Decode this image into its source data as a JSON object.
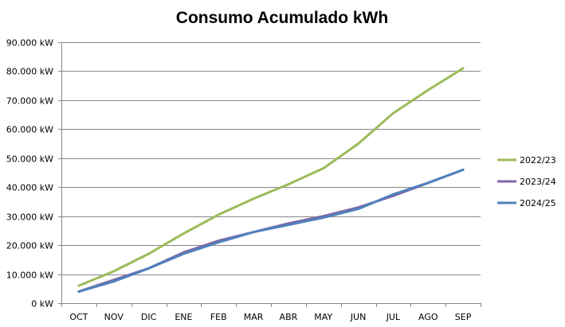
{
  "chart_data": {
    "type": "line",
    "title": "Consumo Acumulado kWh",
    "xlabel": "",
    "ylabel": "",
    "categories": [
      "OCT",
      "NOV",
      "DIC",
      "ENE",
      "FEB",
      "MAR",
      "ABR",
      "MAY",
      "JUN",
      "JUL",
      "AGO",
      "SEP"
    ],
    "ylim": [
      0,
      90000
    ],
    "y_ticks": [
      {
        "value": 0,
        "label": "0 kW"
      },
      {
        "value": 10000,
        "label": "10.000 kW"
      },
      {
        "value": 20000,
        "label": "20.000 kW"
      },
      {
        "value": 30000,
        "label": "30.000 kW"
      },
      {
        "value": 40000,
        "label": "40.000 kW"
      },
      {
        "value": 50000,
        "label": "50.000 kW"
      },
      {
        "value": 60000,
        "label": "60.000 kW"
      },
      {
        "value": 70000,
        "label": "70.000 kW"
      },
      {
        "value": 80000,
        "label": "80.000 kW"
      },
      {
        "value": 90000,
        "label": "90.000 kW"
      }
    ],
    "grid": true,
    "legend_position": "right",
    "series": [
      {
        "name": "2022/23",
        "color": "#9BBB59",
        "values": [
          6000,
          11000,
          17000,
          24000,
          30500,
          36000,
          41000,
          46500,
          55000,
          65500,
          73500,
          81000
        ]
      },
      {
        "name": "2023/24",
        "color": "#8064A2",
        "values": [
          4000,
          8000,
          12000,
          17500,
          21500,
          24500,
          27500,
          30000,
          33000,
          37000,
          41500,
          46000
        ]
      },
      {
        "name": "2024/25",
        "color": "#4F81BD",
        "values": [
          4000,
          7500,
          12000,
          17000,
          21000,
          24500,
          27000,
          29500,
          32500,
          37500,
          41500,
          46000
        ]
      }
    ]
  }
}
